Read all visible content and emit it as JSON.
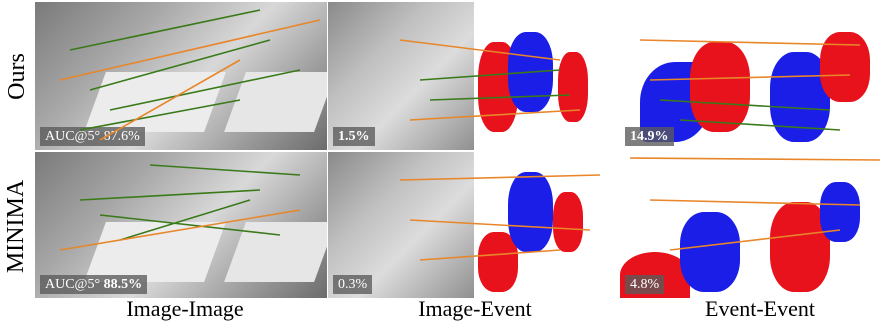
{
  "rows": [
    {
      "label": "Ours",
      "scores": {
        "image_image": {
          "prefix": "AUC@5°",
          "value": "87.6%",
          "bold": false
        },
        "image_event": {
          "prefix": "",
          "value": "1.5%",
          "bold": true
        },
        "event_event": {
          "prefix": "",
          "value": "14.9%",
          "bold": true
        }
      }
    },
    {
      "label": "MINIMA",
      "scores": {
        "image_image": {
          "prefix": "AUC@5°",
          "value": "88.5%",
          "bold": true
        },
        "image_event": {
          "prefix": "",
          "value": "0.3%",
          "bold": false
        },
        "event_event": {
          "prefix": "",
          "value": "4.8%",
          "bold": false
        }
      }
    }
  ],
  "columns": [
    "Image-Image",
    "Image-Event",
    "Event-Event"
  ],
  "colors": {
    "correct_match": "#3a7a1a",
    "wrong_match": "#e8862a",
    "event_positive": "#e8121c",
    "event_negative": "#1a1ee6"
  }
}
